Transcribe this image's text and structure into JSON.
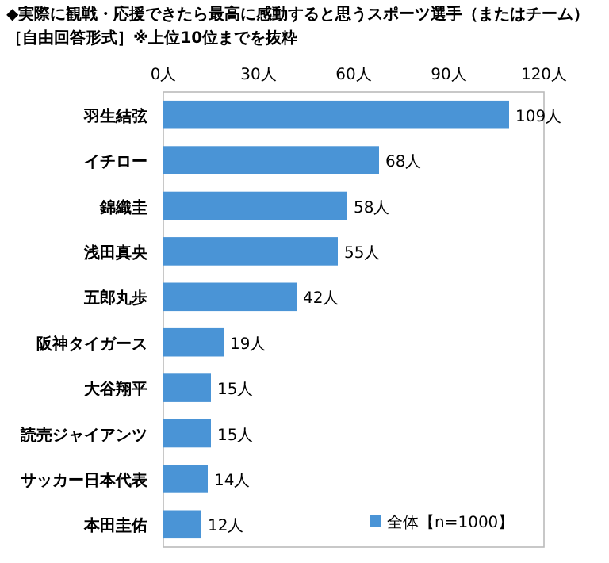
{
  "chart_data": {
    "type": "bar",
    "orientation": "horizontal",
    "title": "◆実際に観戦・応援できたら最高に感動すると思うスポーツ選手（またはチーム）",
    "subtitle": "［自由回答形式］※上位10位までを抜粋",
    "categories": [
      "羽生結弦",
      "イチロー",
      "錦織圭",
      "浅田真央",
      "五郎丸歩",
      "阪神タイガース",
      "大谷翔平",
      "読売ジャイアンツ",
      "サッカー日本代表",
      "本田圭佑"
    ],
    "series": [
      {
        "name": "全体【n=1000】",
        "color": "#4a94d6",
        "values": [
          109,
          68,
          58,
          55,
          42,
          19,
          15,
          15,
          14,
          12
        ],
        "value_labels": [
          "109人",
          "68人",
          "58人",
          "55人",
          "42人",
          "19人",
          "15人",
          "15人",
          "14人",
          "12人"
        ]
      }
    ],
    "xlim": [
      0,
      120
    ],
    "xticks": [
      {
        "value": 0,
        "label": "0人"
      },
      {
        "value": 30,
        "label": "30人"
      },
      {
        "value": 60,
        "label": "60人"
      },
      {
        "value": 90,
        "label": "90人"
      },
      {
        "value": 120,
        "label": "120人"
      }
    ],
    "legend": "bottom right"
  }
}
